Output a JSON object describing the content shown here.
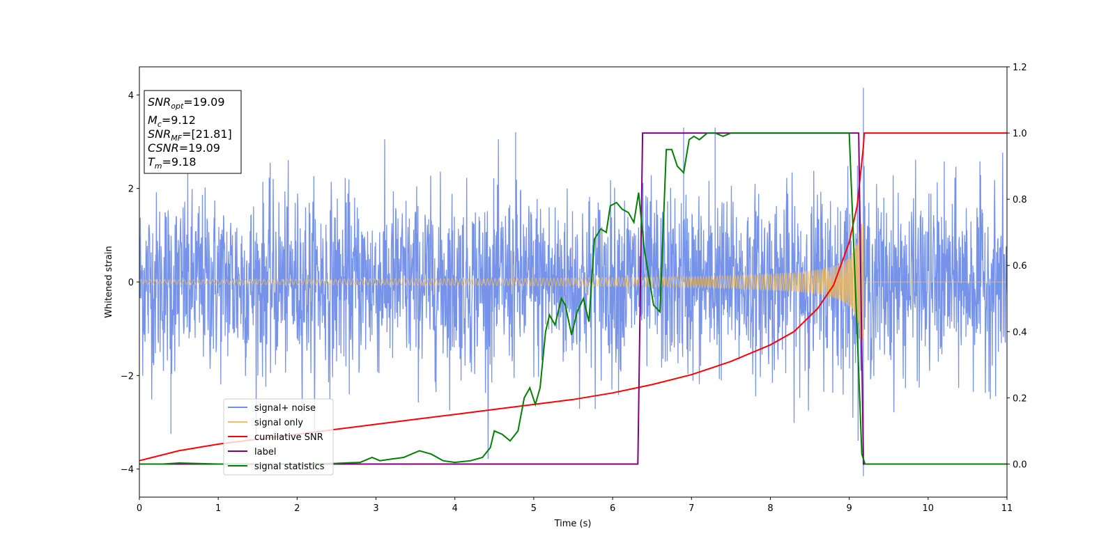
{
  "chart_data": {
    "type": "line",
    "xlabel": "Time (s)",
    "ylabel": "Whitened strain",
    "xlim": [
      0,
      11
    ],
    "ylim": [
      -4.6,
      4.6
    ],
    "y2lim": [
      -0.1,
      1.2
    ],
    "x_ticks": [
      "0",
      "1",
      "2",
      "3",
      "4",
      "5",
      "6",
      "7",
      "8",
      "9",
      "10",
      "11"
    ],
    "y_ticks": [
      "-4",
      "-2",
      "0",
      "2",
      "4"
    ],
    "y2_ticks": [
      "0.0",
      "0.2",
      "0.4",
      "0.6",
      "0.8",
      "1.0",
      "1.2"
    ],
    "legend_position": "lower-left",
    "info_box": {
      "snr_opt": "=19.09",
      "mc": "=9.12",
      "snr_mf": "=[21.81]",
      "csnr": "=19.09",
      "tm": "=9.18"
    },
    "series": [
      {
        "name": "signal+ noise",
        "axis": "left",
        "color": "#6f8de8",
        "kind": "noise",
        "std": 1.0,
        "ranges": [
          -4.2,
          4.2
        ],
        "merger_time": 9.18,
        "peaks": [
          [
            0.4,
            -3.25
          ],
          [
            4.77,
            3.2
          ],
          [
            6.9,
            3.3
          ],
          [
            7.3,
            3.3
          ],
          [
            9.18,
            4.15
          ],
          [
            9.18,
            -4.15
          ]
        ]
      },
      {
        "name": "signal only",
        "axis": "left",
        "color": "#f5be5a",
        "kind": "chirp",
        "merger_time": 9.18,
        "amplitude_start": 0.05,
        "amplitude_peak": 1.25
      },
      {
        "name": "cumilative SNR",
        "axis": "right",
        "color": "#ff0000",
        "x": [
          0,
          0.5,
          1,
          1.5,
          2,
          2.5,
          3,
          3.5,
          4,
          4.5,
          5,
          5.5,
          6,
          6.5,
          7,
          7.5,
          8,
          8.3,
          8.6,
          8.8,
          9.0,
          9.1,
          9.18,
          9.19,
          11
        ],
        "y": [
          0.01,
          0.04,
          0.06,
          0.075,
          0.09,
          0.105,
          0.12,
          0.135,
          0.15,
          0.165,
          0.18,
          0.195,
          0.215,
          0.24,
          0.27,
          0.31,
          0.36,
          0.4,
          0.47,
          0.54,
          0.67,
          0.78,
          0.96,
          1.0,
          1.0
        ]
      },
      {
        "name": "label",
        "axis": "right",
        "color": "#800080",
        "x": [
          0,
          6.32,
          6.38,
          9.12,
          9.18,
          11
        ],
        "y": [
          0,
          0,
          1,
          1,
          0,
          0
        ]
      },
      {
        "name": "signal statistics",
        "axis": "right",
        "color": "#008000",
        "x": [
          0,
          0.3,
          0.5,
          1,
          1.5,
          2,
          2.5,
          2.8,
          2.95,
          3.05,
          3.2,
          3.35,
          3.45,
          3.55,
          3.7,
          3.85,
          4.0,
          4.2,
          4.35,
          4.45,
          4.5,
          4.6,
          4.7,
          4.8,
          4.88,
          4.95,
          5.02,
          5.08,
          5.15,
          5.2,
          5.27,
          5.35,
          5.4,
          5.48,
          5.55,
          5.63,
          5.7,
          5.77,
          5.85,
          5.92,
          5.97,
          6.05,
          6.12,
          6.2,
          6.27,
          6.33,
          6.4,
          6.45,
          6.52,
          6.6,
          6.68,
          6.75,
          6.82,
          6.9,
          6.97,
          7.03,
          7.1,
          7.15,
          7.2,
          7.3,
          7.4,
          7.5,
          7.7,
          8.0,
          8.5,
          9.0,
          9.1,
          9.16,
          9.2,
          9.25,
          11
        ],
        "y": [
          0,
          0,
          0.003,
          0,
          0,
          0,
          0.002,
          0.005,
          0.02,
          0.01,
          0.015,
          0.02,
          0.03,
          0.04,
          0.03,
          0.01,
          0.005,
          0.01,
          0.02,
          0.05,
          0.1,
          0.09,
          0.07,
          0.1,
          0.2,
          0.23,
          0.18,
          0.23,
          0.4,
          0.45,
          0.42,
          0.5,
          0.48,
          0.39,
          0.46,
          0.5,
          0.43,
          0.68,
          0.71,
          0.7,
          0.78,
          0.79,
          0.77,
          0.76,
          0.73,
          0.82,
          0.65,
          0.58,
          0.48,
          0.46,
          0.95,
          0.95,
          0.9,
          0.88,
          0.98,
          0.99,
          0.98,
          0.99,
          1.0,
          1.0,
          0.99,
          1.0,
          1.0,
          1.0,
          1.0,
          1.0,
          0.4,
          0.03,
          0.0,
          0.0,
          0.0
        ]
      }
    ]
  }
}
